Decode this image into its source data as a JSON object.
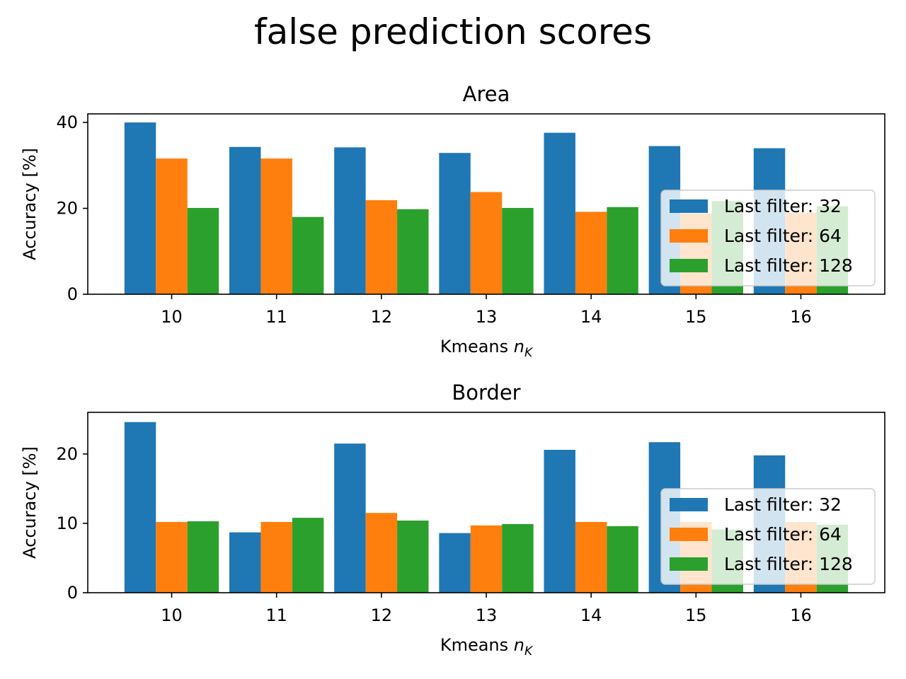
{
  "figure": {
    "title": "false prediction scores"
  },
  "legend": {
    "placement": "right",
    "entries": [
      "Last filter: 32",
      "Last filter: 64",
      "Last filter: 128"
    ]
  },
  "colors": {
    "s32": "#1f77b4",
    "s64": "#ff7f0e",
    "s128": "#2ca02c"
  },
  "chart_data": [
    {
      "type": "bar",
      "title": "Area",
      "xlabel": "Kmeans",
      "xlabel_math": "n",
      "xlabel_sub": "K",
      "ylabel": "Accuracy [%]",
      "categories": [
        "10",
        "11",
        "12",
        "13",
        "14",
        "15",
        "16"
      ],
      "ylim": [
        0,
        42
      ],
      "yticks": [
        0,
        20,
        40
      ],
      "series": [
        {
          "name": "Last filter: 32",
          "color": "#1f77b4",
          "values": [
            40.0,
            34.3,
            34.2,
            32.9,
            37.6,
            34.5,
            34.0
          ]
        },
        {
          "name": "Last filter: 64",
          "color": "#ff7f0e",
          "values": [
            31.6,
            31.6,
            21.9,
            23.8,
            19.2,
            18.8,
            19.0
          ]
        },
        {
          "name": "Last filter: 128",
          "color": "#2ca02c",
          "values": [
            20.1,
            18.0,
            19.8,
            20.1,
            20.3,
            21.7,
            20.5
          ]
        }
      ],
      "grid": false
    },
    {
      "type": "bar",
      "title": "Border",
      "xlabel": "Kmeans",
      "xlabel_math": "n",
      "xlabel_sub": "K",
      "ylabel": "Accuracy [%]",
      "categories": [
        "10",
        "11",
        "12",
        "13",
        "14",
        "15",
        "16"
      ],
      "ylim": [
        0,
        26
      ],
      "yticks": [
        0,
        10,
        20
      ],
      "series": [
        {
          "name": "Last filter: 32",
          "color": "#1f77b4",
          "values": [
            24.6,
            8.7,
            21.5,
            8.6,
            20.6,
            21.7,
            19.8
          ]
        },
        {
          "name": "Last filter: 64",
          "color": "#ff7f0e",
          "values": [
            10.2,
            10.2,
            11.5,
            9.7,
            10.2,
            10.2,
            10.2
          ]
        },
        {
          "name": "Last filter: 128",
          "color": "#2ca02c",
          "values": [
            10.3,
            10.8,
            10.4,
            9.9,
            9.6,
            9.1,
            9.8
          ]
        }
      ],
      "grid": false
    }
  ]
}
